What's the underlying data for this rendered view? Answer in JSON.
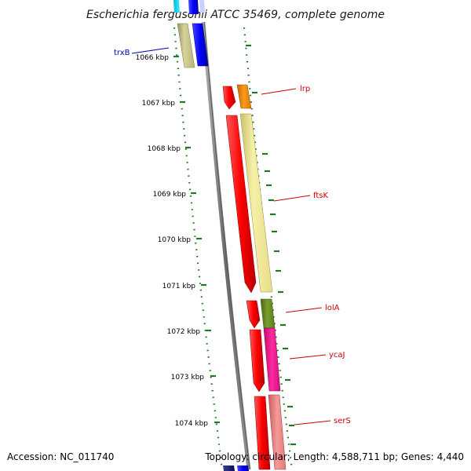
{
  "title": "Escherichia fergusonii ATCC 35469, complete genome",
  "footer": {
    "accession": "Accession: NC_011740",
    "topology": "Topology: circular; Length: 4,588,711 bp; Genes: 4,440"
  },
  "ticks": [
    {
      "label": "1066 kbp"
    },
    {
      "label": "1067 kbp"
    },
    {
      "label": "1068 kbp"
    },
    {
      "label": "1069 kbp"
    },
    {
      "label": "1070 kbp"
    },
    {
      "label": "1071 kbp"
    },
    {
      "label": "1072 kbp"
    },
    {
      "label": "1073 kbp"
    },
    {
      "label": "1074 kbp"
    }
  ],
  "gene_labels": [
    {
      "name": "trxB",
      "color": "#0000aa"
    },
    {
      "name": "lrp",
      "color": "#cc0000"
    },
    {
      "name": "ftsK",
      "color": "#cc0000"
    },
    {
      "name": "lolA",
      "color": "#cc0000"
    },
    {
      "name": "ycaJ",
      "color": "#cc0000"
    },
    {
      "name": "serS",
      "color": "#cc0000"
    }
  ],
  "colors": {
    "backbone": "#808080",
    "gc_ticks": "#1f7a1f",
    "forward_strand_gene": "#ff0000",
    "trxB_gene": "#0000ff",
    "trxB_feature": "#c8c38a",
    "lrp_feature": "#ff8c00",
    "ftsK_feature": "#f3eb9a",
    "lolA_feature": "#6b8e23",
    "ycaJ_feature": "#ff1493",
    "serS_feature": "#f08080"
  }
}
